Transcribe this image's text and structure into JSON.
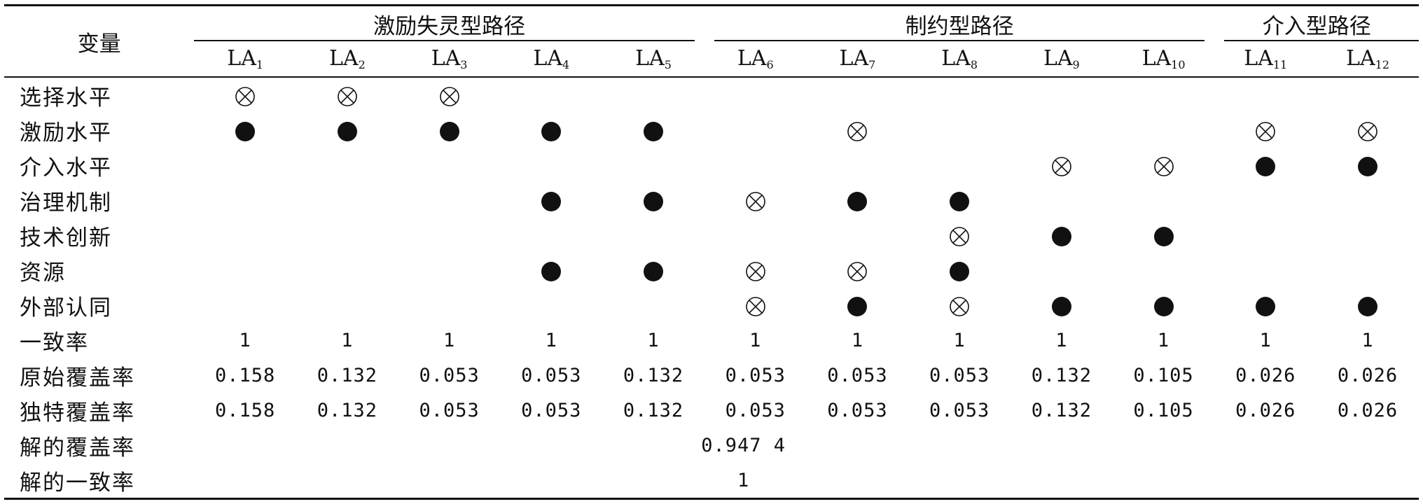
{
  "table": {
    "var_header": "变量",
    "groups": [
      {
        "label": "激励失灵型路径",
        "span": 5
      },
      {
        "label": "制约型路径",
        "span": 5
      },
      {
        "label": "介入型路径",
        "span": 2
      }
    ],
    "la_label": "LA",
    "la_subs": [
      "1",
      "2",
      "3",
      "4",
      "5",
      "6",
      "7",
      "8",
      "9",
      "10",
      "11",
      "12"
    ],
    "rows": [
      {
        "name": "选择水平",
        "cells": [
          "x",
          "x",
          "x",
          "",
          "",
          "",
          "",
          "",
          "",
          "",
          "",
          ""
        ]
      },
      {
        "name": "激励水平",
        "cells": [
          "o",
          "o",
          "o",
          "o",
          "o",
          "",
          "x",
          "",
          "",
          "",
          "x",
          "x"
        ]
      },
      {
        "name": "介入水平",
        "cells": [
          "",
          "",
          "",
          "",
          "",
          "",
          "",
          "",
          "x",
          "x",
          "o",
          "o"
        ]
      },
      {
        "name": "治理机制",
        "cells": [
          "",
          "",
          "",
          "o",
          "o",
          "x",
          "o",
          "o",
          "",
          "",
          "",
          ""
        ]
      },
      {
        "name": "技术创新",
        "cells": [
          "",
          "",
          "",
          "",
          "",
          "",
          "",
          "x",
          "o",
          "o",
          "",
          ""
        ]
      },
      {
        "name": "资源",
        "cells": [
          "",
          "",
          "",
          "o",
          "o",
          "x",
          "x",
          "o",
          "",
          "",
          "",
          ""
        ]
      },
      {
        "name": "外部认同",
        "cells": [
          "",
          "",
          "",
          "",
          "",
          "x",
          "o",
          "x",
          "o",
          "o",
          "o",
          "o"
        ]
      }
    ],
    "consistency": {
      "name": "一致率",
      "values": [
        "1",
        "1",
        "1",
        "1",
        "1",
        "1",
        "1",
        "1",
        "1",
        "1",
        "1",
        "1"
      ]
    },
    "raw_coverage": {
      "name": "原始覆盖率",
      "values": [
        "0.158",
        "0.132",
        "0.053",
        "0.053",
        "0.132",
        "0.053",
        "0.053",
        "0.053",
        "0.132",
        "0.105",
        "0.026",
        "0.026"
      ]
    },
    "unique_coverage": {
      "name": "独特覆盖率",
      "values": [
        "0.158",
        "0.132",
        "0.053",
        "0.053",
        "0.132",
        "0.053",
        "0.053",
        "0.053",
        "0.132",
        "0.105",
        "0.026",
        "0.026"
      ]
    },
    "solution_coverage": {
      "name": "解的覆盖率",
      "value": "0.947 4"
    },
    "solution_consistency": {
      "name": "解的一致率",
      "value": "1"
    },
    "symbols": {
      "o": {
        "icon": "filled-circle-icon",
        "color": "#111111"
      },
      "x": {
        "icon": "circled-times-icon",
        "color": "#111111"
      }
    }
  }
}
